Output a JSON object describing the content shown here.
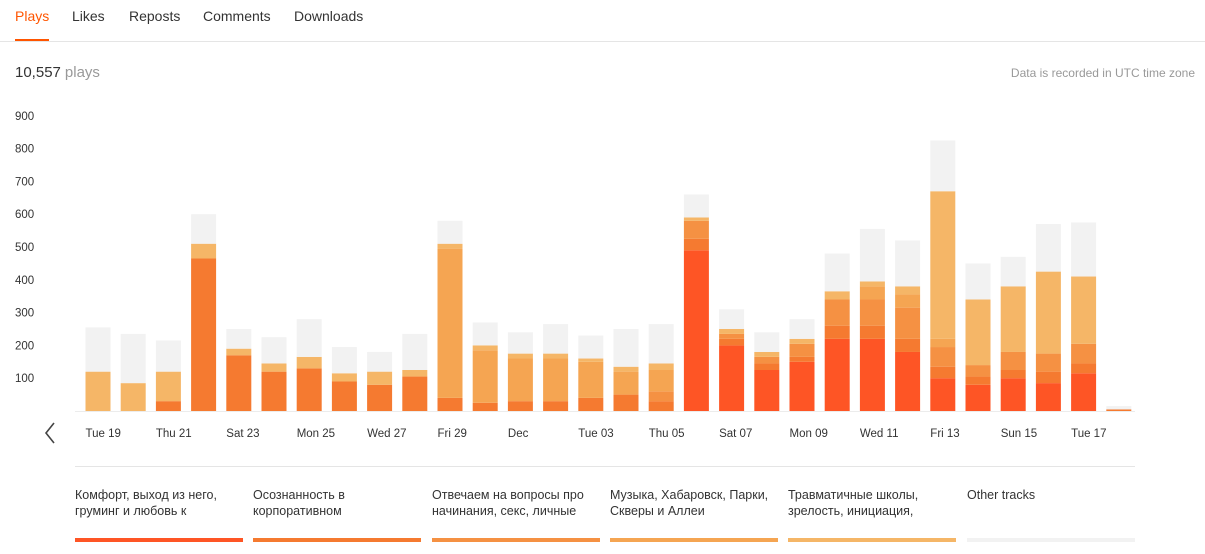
{
  "tabs": [
    {
      "label": "Plays",
      "active": true
    },
    {
      "label": "Likes",
      "active": false
    },
    {
      "label": "Reposts",
      "active": false
    },
    {
      "label": "Comments",
      "active": false
    },
    {
      "label": "Downloads",
      "active": false
    }
  ],
  "summary": {
    "count": "10,557",
    "unit": "plays"
  },
  "timezone_note": "Data is recorded in UTC time zone",
  "nav": {
    "prev_icon": "chevron-left-icon"
  },
  "colors": {
    "accent": "#ff5500",
    "series": [
      "#fe5525",
      "#f57a30",
      "#f59143",
      "#f5a552",
      "#f5b667",
      "#f2f2f2"
    ]
  },
  "chart_data": {
    "type": "bar",
    "stacked": true,
    "ylim": [
      0,
      900
    ],
    "yticks": [
      100,
      200,
      300,
      400,
      500,
      600,
      700,
      800,
      900
    ],
    "xtick_labels": [
      "Tue 19",
      "Thu 21",
      "Sat 23",
      "Mon 25",
      "Wed 27",
      "Fri 29",
      "Dec",
      "Tue 03",
      "Thu 05",
      "Sat 07",
      "Mon 09",
      "Wed 11",
      "Fri 13",
      "Sun 15",
      "Tue 17"
    ],
    "categories": [
      "Nov 19",
      "Nov 20",
      "Nov 21",
      "Nov 22",
      "Nov 23",
      "Nov 24",
      "Nov 25",
      "Nov 26",
      "Nov 27",
      "Nov 28",
      "Nov 29",
      "Nov 30",
      "Dec 01",
      "Dec 02",
      "Dec 03",
      "Dec 04",
      "Dec 05",
      "Dec 06",
      "Dec 07",
      "Dec 08",
      "Dec 09",
      "Dec 10",
      "Dec 11",
      "Dec 12",
      "Dec 13",
      "Dec 14",
      "Dec 15",
      "Dec 16",
      "Dec 17",
      "Dec 18"
    ],
    "series": [
      {
        "name": "Комфорт, выход из него, груминг и любовь к",
        "values": [
          0,
          0,
          0,
          0,
          0,
          0,
          0,
          0,
          0,
          0,
          0,
          0,
          0,
          0,
          0,
          0,
          0,
          490,
          200,
          125,
          150,
          220,
          220,
          180,
          100,
          80,
          100,
          85,
          115,
          0
        ]
      },
      {
        "name": "Осознанность в корпоративном",
        "values": [
          0,
          0,
          30,
          465,
          170,
          120,
          130,
          90,
          80,
          105,
          40,
          25,
          30,
          30,
          40,
          50,
          30,
          35,
          20,
          20,
          15,
          40,
          40,
          40,
          35,
          25,
          25,
          35,
          30,
          5
        ]
      },
      {
        "name": "Отвечаем на вопросы про начинания, секс, личные",
        "values": [
          0,
          0,
          0,
          0,
          0,
          0,
          0,
          0,
          0,
          0,
          0,
          0,
          0,
          0,
          0,
          0,
          30,
          55,
          15,
          20,
          40,
          80,
          80,
          95,
          60,
          35,
          55,
          55,
          60,
          0
        ]
      },
      {
        "name": "Музыка, Хабаровск, Парки, Скверы и Аллеи",
        "values": [
          0,
          0,
          0,
          0,
          0,
          0,
          0,
          0,
          0,
          0,
          455,
          160,
          130,
          130,
          110,
          70,
          65,
          0,
          0,
          0,
          0,
          0,
          40,
          40,
          25,
          0,
          0,
          0,
          0,
          0
        ]
      },
      {
        "name": "Травматичные школы, зрелость, инициация,",
        "values": [
          120,
          85,
          90,
          45,
          20,
          25,
          35,
          25,
          40,
          20,
          15,
          15,
          15,
          15,
          10,
          15,
          20,
          10,
          15,
          15,
          15,
          25,
          15,
          25,
          450,
          200,
          200,
          250,
          205,
          0
        ]
      },
      {
        "name": "Other tracks",
        "values": [
          135,
          150,
          95,
          90,
          60,
          80,
          115,
          80,
          60,
          110,
          70,
          70,
          65,
          90,
          70,
          115,
          120,
          70,
          60,
          60,
          60,
          115,
          160,
          140,
          155,
          110,
          90,
          145,
          165,
          10
        ]
      }
    ]
  },
  "legend": [
    {
      "label": "Комфорт, выход из него, груминг и любовь к",
      "color": "#fe5525"
    },
    {
      "label": "Осознанность в корпоративном",
      "color": "#f57a30"
    },
    {
      "label": "Отвечаем на вопросы про начинания, секс, личные",
      "color": "#f59143"
    },
    {
      "label": "Музыка, Хабаровск, Парки, Скверы и Аллеи",
      "color": "#f5a552"
    },
    {
      "label": "Травматичные школы, зрелость, инициация,",
      "color": "#f5b667"
    },
    {
      "label": "Other tracks",
      "color": "#f2f2f2"
    }
  ]
}
